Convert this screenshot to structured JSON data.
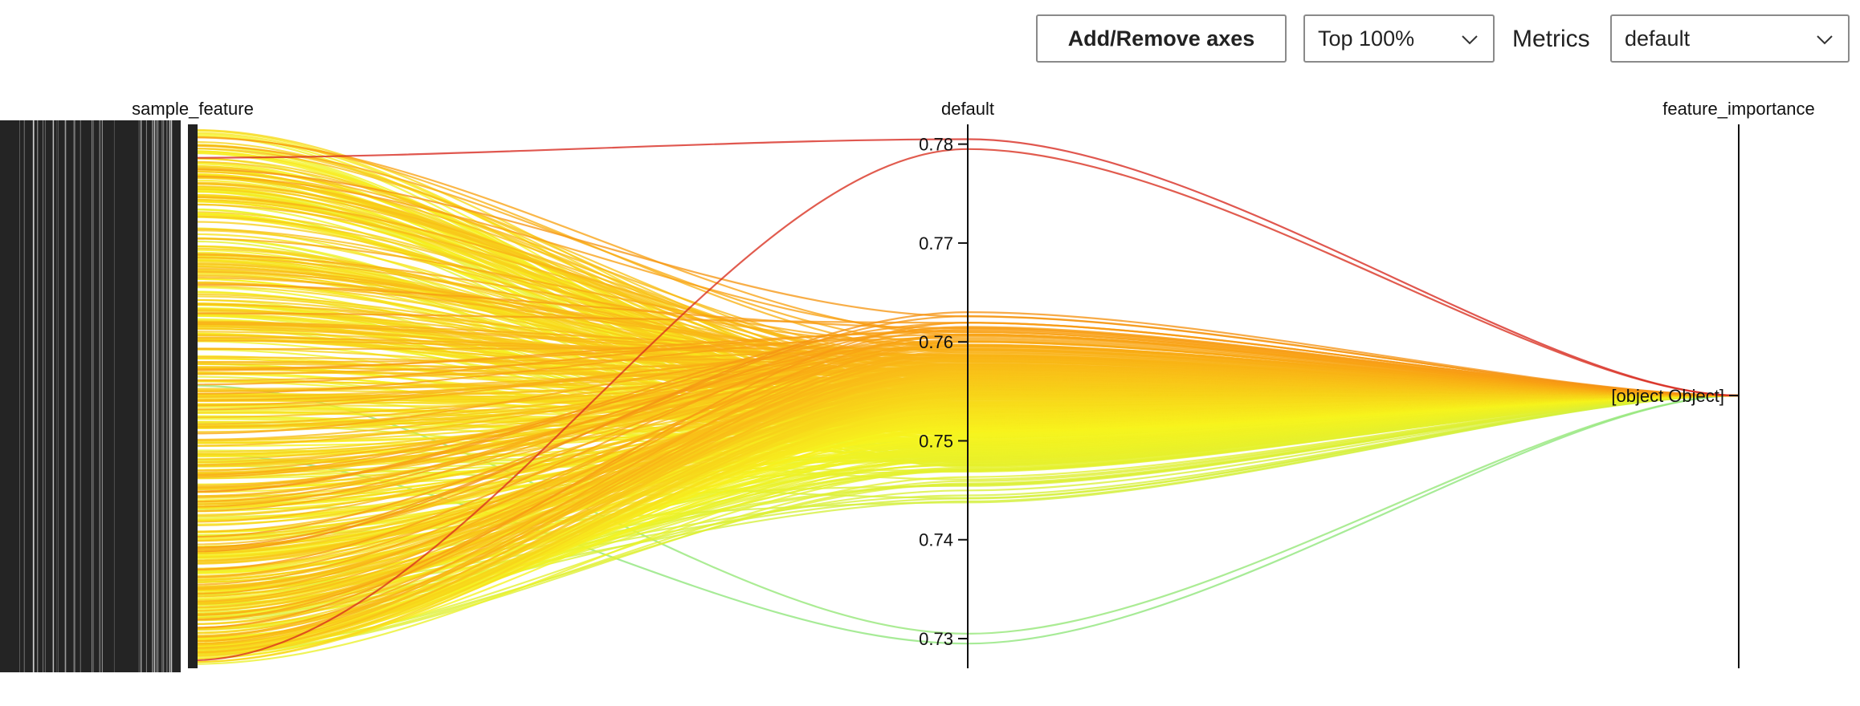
{
  "toolbar": {
    "add_remove_label": "Add/Remove axes",
    "top_select_value": "Top 100%",
    "metrics_label": "Metrics",
    "metrics_select_value": "default"
  },
  "chart_data": {
    "type": "parallel_coordinates",
    "axes": [
      {
        "name": "sample_feature",
        "kind": "categorical"
      },
      {
        "name": "default",
        "kind": "numeric",
        "range": [
          0.727,
          0.782
        ],
        "ticks": [
          0.73,
          0.74,
          0.75,
          0.76,
          0.77,
          0.78
        ]
      },
      {
        "name": "feature_importance",
        "kind": "categorical",
        "categories": [
          "[object Object]"
        ]
      }
    ],
    "color_scale": {
      "metric": "default",
      "low_color": "#8ee67a",
      "mid_color": "#f7f31e",
      "high_color": "#d7281e"
    },
    "default_value_summary": {
      "min": 0.7295,
      "max": 0.7805,
      "line_count": "many"
    }
  }
}
